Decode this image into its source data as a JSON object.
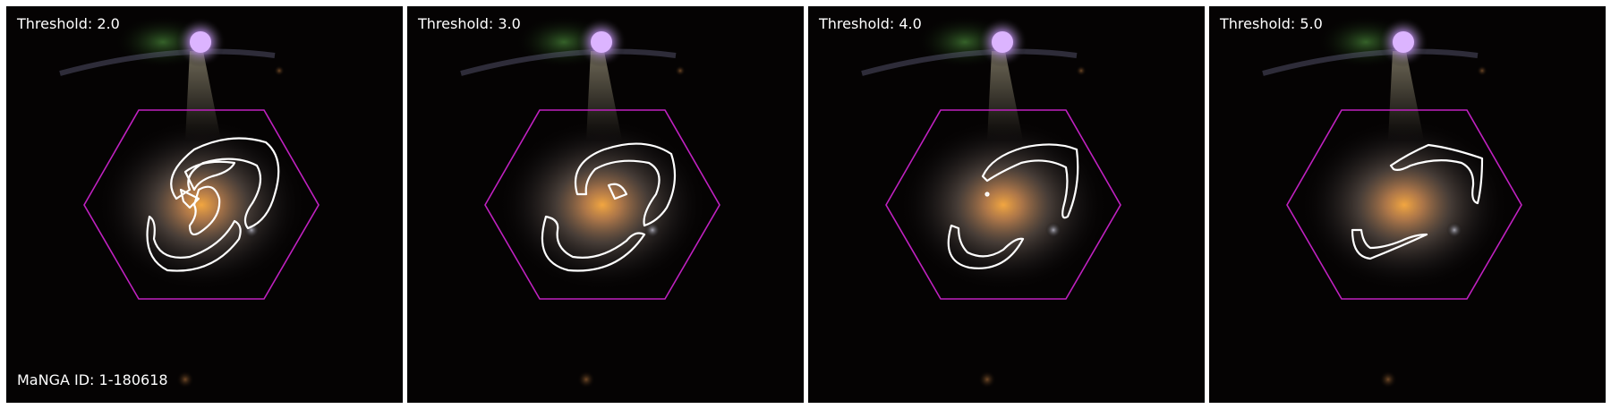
{
  "panels": [
    {
      "threshold_label": "Threshold: 2.0",
      "threshold": 2.0
    },
    {
      "threshold_label": "Threshold: 3.0",
      "threshold": 3.0
    },
    {
      "threshold_label": "Threshold: 4.0",
      "threshold": 4.0
    },
    {
      "threshold_label": "Threshold: 5.0",
      "threshold": 5.0
    }
  ],
  "manga_id_label": "MaNGA ID: 1-180618",
  "colors": {
    "background": "#050303",
    "hexagon": "#c021c0",
    "contour": "#ffffff",
    "star": "#d9a8ff",
    "galaxy_core": "#f0a030"
  }
}
